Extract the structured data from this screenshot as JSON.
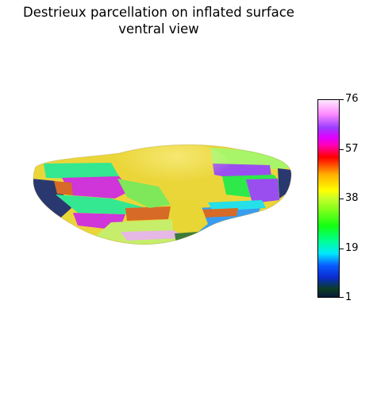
{
  "title": {
    "line1": "Destrieux parcellation on inflated surface",
    "line2": "ventral view"
  },
  "colorbar": {
    "tick_labels": [
      "76",
      "57",
      "38",
      "19",
      "1"
    ],
    "colors": [
      "#0a1a3a",
      "#0a2bd0",
      "#00e7ff",
      "#12ff12",
      "#ffff00",
      "#ff3a00",
      "#ff00b4",
      "#9b3dff",
      "#ffe8ff"
    ]
  },
  "surface": {
    "region_colors": [
      "#ebd63a",
      "#d9cf33",
      "#a8f56a",
      "#33e890",
      "#cf35d8",
      "#d66a26",
      "#2a3870",
      "#9a4ef0",
      "#3a9cf0",
      "#2fe84a"
    ]
  }
}
